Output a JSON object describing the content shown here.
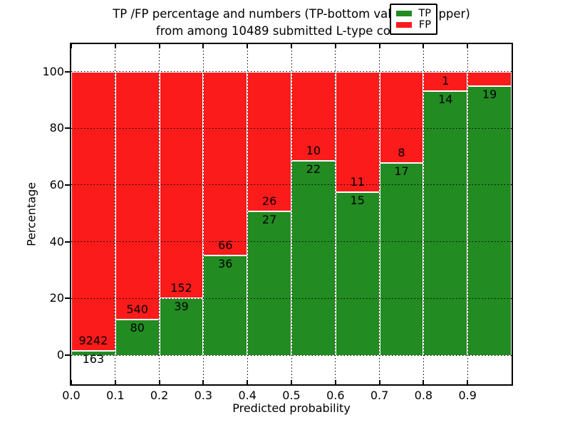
{
  "chart_data": {
    "type": "bar",
    "stacked": true,
    "title_lines": [
      "TP /FP percentage and numbers (TP-bottom value, FP-upper)",
      "from among 10489 submitted L-type contacts"
    ],
    "xlabel": "Predicted probability",
    "ylabel": "Percentage",
    "total_submitted": 10489,
    "xlim": [
      0.0,
      1.0
    ],
    "ylim": [
      -10.3,
      109.7
    ],
    "x_bin_width": 0.1,
    "xticks": [
      "0.0",
      "0.1",
      "0.2",
      "0.3",
      "0.4",
      "0.5",
      "0.6",
      "0.7",
      "0.8",
      "0.9"
    ],
    "yticks": [
      0,
      20,
      40,
      60,
      80,
      100
    ],
    "grid": {
      "style": "dotted",
      "color": "#000000"
    },
    "colors": {
      "tp": "#228B22",
      "fp": "#FB1B1B",
      "bar_edge": "#FFFFFF",
      "background": "#FFFFFF"
    },
    "legend": {
      "position": "upper-right",
      "entries": [
        {
          "label": "TP",
          "series": "tp"
        },
        {
          "label": "FP",
          "series": "fp"
        }
      ]
    },
    "bins": [
      {
        "range": [
          0.0,
          0.1
        ],
        "tp": 163,
        "fp": 9242,
        "fp_label_visible": true
      },
      {
        "range": [
          0.1,
          0.2
        ],
        "tp": 80,
        "fp": 540,
        "fp_label_visible": true
      },
      {
        "range": [
          0.2,
          0.3
        ],
        "tp": 39,
        "fp": 152,
        "fp_label_visible": true
      },
      {
        "range": [
          0.3,
          0.4
        ],
        "tp": 36,
        "fp": 66,
        "fp_label_visible": true
      },
      {
        "range": [
          0.4,
          0.5
        ],
        "tp": 27,
        "fp": 26,
        "fp_label_visible": true
      },
      {
        "range": [
          0.5,
          0.6
        ],
        "tp": 22,
        "fp": 10,
        "fp_label_visible": true
      },
      {
        "range": [
          0.6,
          0.7
        ],
        "tp": 15,
        "fp": 11,
        "fp_label_visible": true
      },
      {
        "range": [
          0.7,
          0.8
        ],
        "tp": 17,
        "fp": 8,
        "fp_label_visible": true
      },
      {
        "range": [
          0.8,
          0.9
        ],
        "tp": 14,
        "fp": 1,
        "fp_label_visible": true
      },
      {
        "range": [
          0.9,
          1.0
        ],
        "tp": 19,
        "fp": 1,
        "fp_label_visible": false
      }
    ]
  }
}
